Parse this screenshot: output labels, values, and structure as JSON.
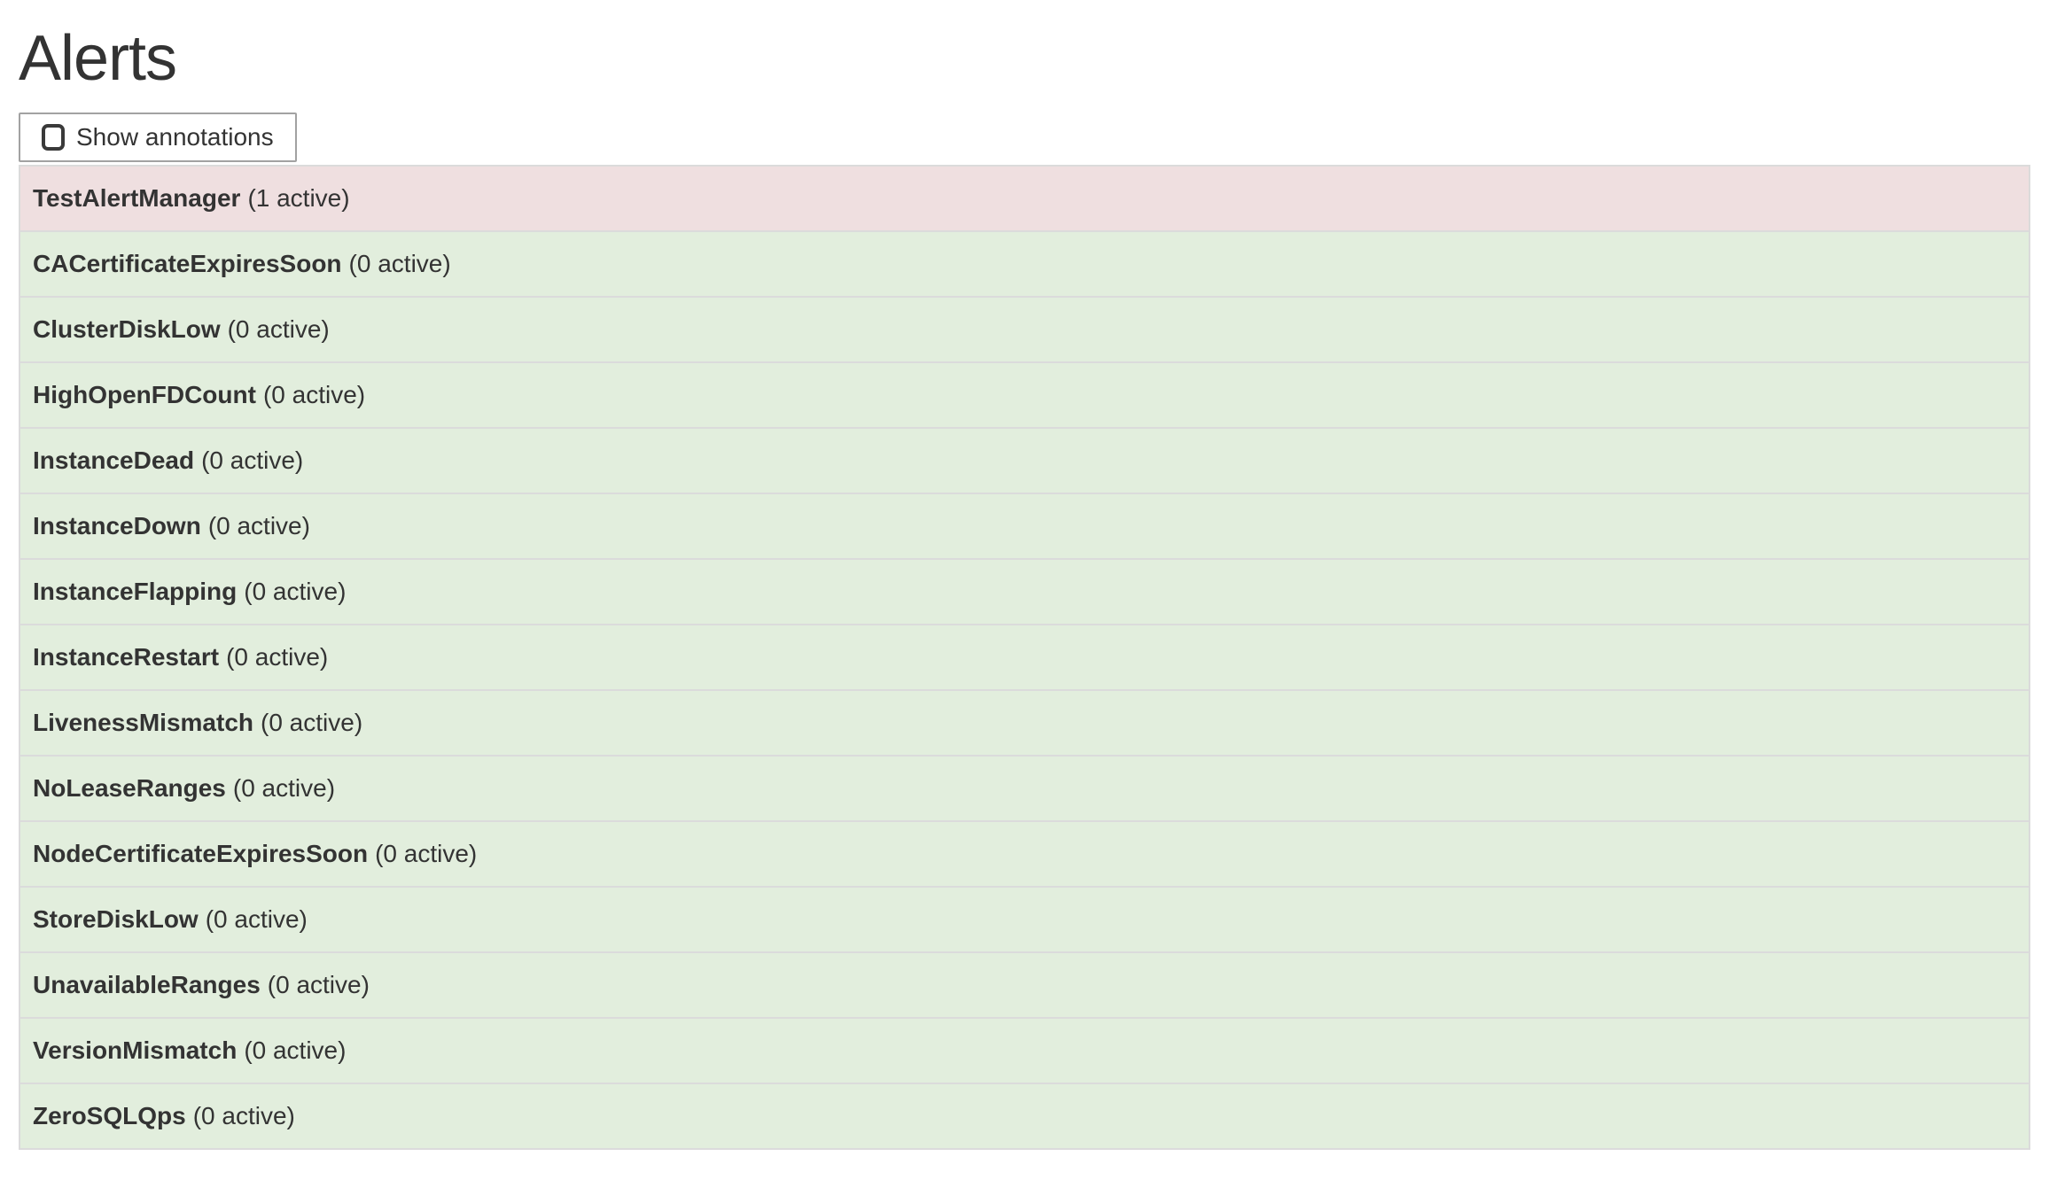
{
  "page": {
    "title": "Alerts"
  },
  "toolbar": {
    "show_annotations_label": "Show annotations",
    "checkbox_checked": false
  },
  "alerts": {
    "rows": [
      {
        "name": "TestAlertManager",
        "active_count": 1,
        "count_label": "(1 active)",
        "state": "firing"
      },
      {
        "name": "CACertificateExpiresSoon",
        "active_count": 0,
        "count_label": "(0 active)",
        "state": "inactive"
      },
      {
        "name": "ClusterDiskLow",
        "active_count": 0,
        "count_label": "(0 active)",
        "state": "inactive"
      },
      {
        "name": "HighOpenFDCount",
        "active_count": 0,
        "count_label": "(0 active)",
        "state": "inactive"
      },
      {
        "name": "InstanceDead",
        "active_count": 0,
        "count_label": "(0 active)",
        "state": "inactive"
      },
      {
        "name": "InstanceDown",
        "active_count": 0,
        "count_label": "(0 active)",
        "state": "inactive"
      },
      {
        "name": "InstanceFlapping",
        "active_count": 0,
        "count_label": "(0 active)",
        "state": "inactive"
      },
      {
        "name": "InstanceRestart",
        "active_count": 0,
        "count_label": "(0 active)",
        "state": "inactive"
      },
      {
        "name": "LivenessMismatch",
        "active_count": 0,
        "count_label": "(0 active)",
        "state": "inactive"
      },
      {
        "name": "NoLeaseRanges",
        "active_count": 0,
        "count_label": "(0 active)",
        "state": "inactive"
      },
      {
        "name": "NodeCertificateExpiresSoon",
        "active_count": 0,
        "count_label": "(0 active)",
        "state": "inactive"
      },
      {
        "name": "StoreDiskLow",
        "active_count": 0,
        "count_label": "(0 active)",
        "state": "inactive"
      },
      {
        "name": "UnavailableRanges",
        "active_count": 0,
        "count_label": "(0 active)",
        "state": "inactive"
      },
      {
        "name": "VersionMismatch",
        "active_count": 0,
        "count_label": "(0 active)",
        "state": "inactive"
      },
      {
        "name": "ZeroSQLQps",
        "active_count": 0,
        "count_label": "(0 active)",
        "state": "inactive"
      }
    ]
  },
  "colors": {
    "firing_bg": "#efdfe0",
    "inactive_bg": "#e2eedd",
    "row_border": "#dbdbdb",
    "text": "#333333",
    "button_border": "#a2a2a2"
  }
}
